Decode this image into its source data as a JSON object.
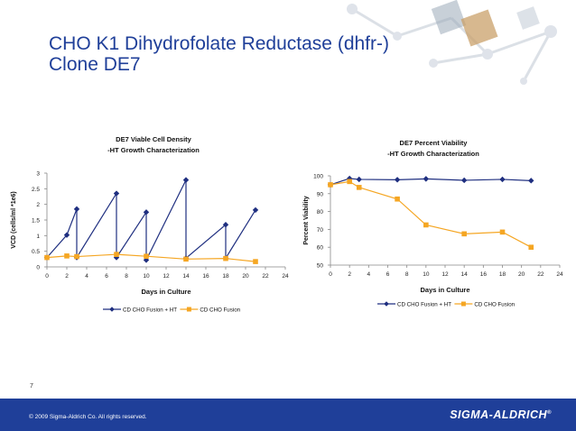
{
  "slide": {
    "title_line1": "CHO K1 Dihydrofolate Reductase (dhfr-)",
    "title_line2": "Clone DE7",
    "page_number": "7",
    "copyright": "© 2009 Sigma-Aldrich Co. All rights reserved.",
    "brand": "SIGMA-ALDRICH",
    "brand_mark": "®",
    "colors": {
      "title": "#1f3f99",
      "footer": "#1f3f99",
      "series1": "#1f2f80",
      "series2": "#f5a623"
    }
  },
  "chart_data": [
    {
      "type": "line",
      "title": "DE7 Viable Cell Density",
      "subtitle": "-HT Growth Characterization",
      "xlabel": "Days in Culture",
      "ylabel": "VCD (cells/ml *1e6)",
      "xlim": [
        0,
        24
      ],
      "ylim": [
        0,
        3
      ],
      "xticks": [
        0,
        2,
        4,
        6,
        8,
        10,
        12,
        14,
        16,
        18,
        20,
        22,
        24
      ],
      "yticks": [
        0,
        0.5,
        1,
        1.5,
        2,
        2.5,
        3
      ],
      "grid": false,
      "legend": "bottom",
      "series": [
        {
          "name": "CD CHO Fusion + HT",
          "marker": "diamond",
          "color": "#1f2f80",
          "x": [
            0,
            2,
            3,
            3,
            7,
            7,
            10,
            10,
            14,
            14,
            18,
            18,
            21
          ],
          "y": [
            0.3,
            1.02,
            1.85,
            0.3,
            2.35,
            0.3,
            1.75,
            0.22,
            2.78,
            0.28,
            1.35,
            0.28,
            1.82
          ]
        },
        {
          "name": "CD CHO Fusion",
          "marker": "square",
          "color": "#f5a623",
          "x": [
            0,
            2,
            3,
            7,
            10,
            14,
            18,
            21
          ],
          "y": [
            0.3,
            0.35,
            0.33,
            0.4,
            0.34,
            0.25,
            0.27,
            0.17
          ]
        }
      ]
    },
    {
      "type": "line",
      "title": "DE7 Percent Viability",
      "subtitle": "-HT Growth Characterization",
      "xlabel": "Days in Culture",
      "ylabel": "Percent Viability",
      "xlim": [
        0,
        24
      ],
      "ylim": [
        50,
        100
      ],
      "xticks": [
        0,
        2,
        4,
        6,
        8,
        10,
        12,
        14,
        16,
        18,
        20,
        22,
        24
      ],
      "yticks": [
        50,
        60,
        70,
        80,
        90,
        100
      ],
      "grid": false,
      "legend": "bottom",
      "series": [
        {
          "name": "CD CHO Fusion + HT",
          "marker": "diamond",
          "color": "#1f2f80",
          "x": [
            0,
            2,
            3,
            7,
            10,
            14,
            18,
            21
          ],
          "y": [
            95,
            98.5,
            98,
            97.8,
            98.3,
            97.5,
            98,
            97.3
          ]
        },
        {
          "name": "CD CHO Fusion",
          "marker": "square",
          "color": "#f5a623",
          "x": [
            0,
            2,
            3,
            7,
            10,
            14,
            18,
            21
          ],
          "y": [
            95,
            96.8,
            93.5,
            87,
            72.5,
            67.5,
            68.5,
            60
          ]
        }
      ]
    }
  ]
}
